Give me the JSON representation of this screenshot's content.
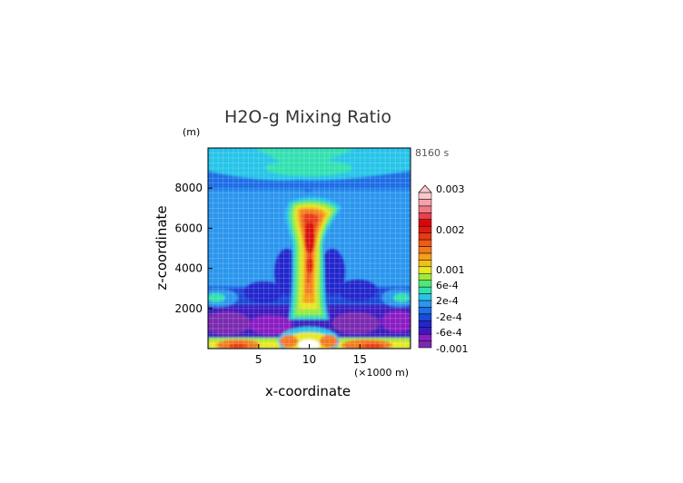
{
  "chart_data": {
    "type": "heatmap",
    "title": "H2O-g Mixing Ratio",
    "time_label": "8160 s",
    "xlabel": "x-coordinate",
    "ylabel": "z-coordinate",
    "x_unit": "(×1000 m)",
    "y_unit": "(m)",
    "xlim": [
      0,
      20
    ],
    "ylim": [
      0,
      10000
    ],
    "x_ticks": [
      "5",
      "10",
      "15"
    ],
    "y_ticks": [
      "2000",
      "4000",
      "6000",
      "8000"
    ],
    "grid": true,
    "colorbar": {
      "labels": [
        "0.003",
        "0.002",
        "0.001",
        "6e-4",
        "2e-4",
        "-2e-4",
        "-6e-4",
        "-0.001"
      ],
      "colors": [
        "#7a2ab0",
        "#8a1ec2",
        "#3a1ac0",
        "#2426cc",
        "#1a4ad8",
        "#1f6ee6",
        "#2a96ee",
        "#28c4e8",
        "#30e0b0",
        "#50e878",
        "#a0e83a",
        "#e8e820",
        "#f0c018",
        "#f4a018",
        "#f47820",
        "#f05a18",
        "#e83a14",
        "#e01c10",
        "#d80808",
        "#e84050",
        "#f07a82",
        "#f6a0a8",
        "#fbc8cc"
      ]
    }
  }
}
